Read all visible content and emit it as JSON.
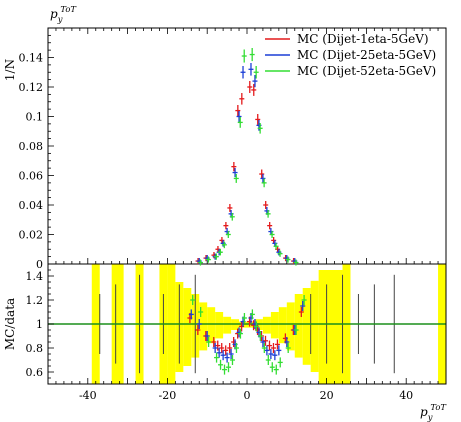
{
  "chart_data": [
    {
      "type": "scatter",
      "title": "",
      "corner_label": "p_y^{ToT}",
      "ylabel": "1/N",
      "xlabel": "",
      "xlim": [
        -50,
        50
      ],
      "ylim": [
        0,
        0.16
      ],
      "y_tick_labels": [
        "0",
        "0.02",
        "0.04",
        "0.06",
        "0.08",
        "0.1",
        "0.12",
        "0.14"
      ],
      "legend_position": "top-right",
      "series": [
        {
          "name": "MC (Dijet-1eta-5GeV)",
          "color": "#e41a1c",
          "x": [
            -12,
            -10,
            -8,
            -7,
            -6,
            -5,
            -4,
            -3,
            -2,
            -1,
            1,
            2,
            3,
            4,
            5,
            6,
            7,
            8,
            10,
            12
          ],
          "y": [
            0.002,
            0.004,
            0.006,
            0.01,
            0.016,
            0.026,
            0.038,
            0.066,
            0.104,
            0.112,
            0.12,
            0.118,
            0.098,
            0.061,
            0.04,
            0.026,
            0.016,
            0.01,
            0.004,
            0.002
          ]
        },
        {
          "name": "MC (Dijet-25eta-5GeV)",
          "color": "#1c3fd6",
          "x": [
            -12,
            -10,
            -8,
            -7,
            -6,
            -5,
            -4,
            -3,
            -2,
            -1,
            1,
            2,
            3,
            4,
            5,
            6,
            7,
            8,
            10,
            12
          ],
          "y": [
            0.002,
            0.004,
            0.005,
            0.008,
            0.014,
            0.022,
            0.034,
            0.062,
            0.1,
            0.13,
            0.132,
            0.124,
            0.094,
            0.058,
            0.036,
            0.022,
            0.014,
            0.008,
            0.004,
            0.002
          ]
        },
        {
          "name": "MC (Dijet-52eta-5GeV)",
          "color": "#33dd33",
          "x": [
            -12,
            -10,
            -8,
            -7,
            -6,
            -5,
            -4,
            -3,
            -2,
            -1,
            1,
            2,
            3,
            4,
            5,
            6,
            7,
            8,
            10,
            12
          ],
          "y": [
            0.001,
            0.003,
            0.005,
            0.008,
            0.013,
            0.02,
            0.032,
            0.058,
            0.096,
            0.141,
            0.142,
            0.13,
            0.092,
            0.055,
            0.034,
            0.02,
            0.012,
            0.007,
            0.003,
            0.001
          ]
        }
      ]
    },
    {
      "type": "scatter",
      "title": "",
      "ylabel": "MC/data",
      "xlabel": "p_y^{ToT}",
      "xlim": [
        -50,
        50
      ],
      "ylim": [
        0.5,
        1.5
      ],
      "x_tick_labels": [
        "-40",
        "-20",
        "0",
        "20",
        "40"
      ],
      "y_tick_labels": [
        "0.6",
        "0.8",
        "1",
        "1.2",
        "1.4"
      ],
      "reference_line": 1,
      "band_color": "#ffff00",
      "series": [
        {
          "name": "MC (Dijet-1eta-5GeV)",
          "color": "#e41a1c",
          "x": [
            -14,
            -12,
            -10,
            -8,
            -7,
            -6,
            -5,
            -4,
            -3,
            -2,
            -1,
            1,
            2,
            3,
            4,
            5,
            6,
            7,
            8,
            10,
            12,
            14
          ],
          "y": [
            1.05,
            0.95,
            0.9,
            0.85,
            0.82,
            0.8,
            0.78,
            0.8,
            0.85,
            0.92,
            0.98,
            1.02,
            0.99,
            0.95,
            0.9,
            0.86,
            0.82,
            0.8,
            0.83,
            0.88,
            0.95,
            1.1
          ]
        },
        {
          "name": "MC (Dijet-25eta-5GeV)",
          "color": "#1c3fd6",
          "x": [
            -14,
            -12,
            -10,
            -8,
            -7,
            -6,
            -5,
            -4,
            -3,
            -2,
            -1,
            1,
            2,
            3,
            4,
            5,
            6,
            7,
            8,
            10,
            12,
            14
          ],
          "y": [
            1.08,
            1.0,
            0.9,
            0.8,
            0.76,
            0.74,
            0.72,
            0.75,
            0.83,
            0.93,
            1.02,
            1.05,
            1.0,
            0.93,
            0.85,
            0.78,
            0.75,
            0.74,
            0.78,
            0.85,
            0.95,
            1.15
          ]
        },
        {
          "name": "MC (Dijet-52eta-5GeV)",
          "color": "#33dd33",
          "x": [
            -14,
            -12,
            -10,
            -8,
            -7,
            -6,
            -5,
            -4,
            -3,
            -2,
            -1,
            1,
            2,
            3,
            4,
            5,
            6,
            7,
            8,
            10,
            12,
            14
          ],
          "y": [
            1.2,
            1.1,
            0.85,
            0.72,
            0.66,
            0.62,
            0.64,
            0.7,
            0.8,
            0.92,
            1.05,
            1.08,
            0.98,
            0.9,
            0.8,
            0.7,
            0.64,
            0.62,
            0.68,
            0.8,
            0.95,
            1.2
          ]
        }
      ]
    }
  ]
}
